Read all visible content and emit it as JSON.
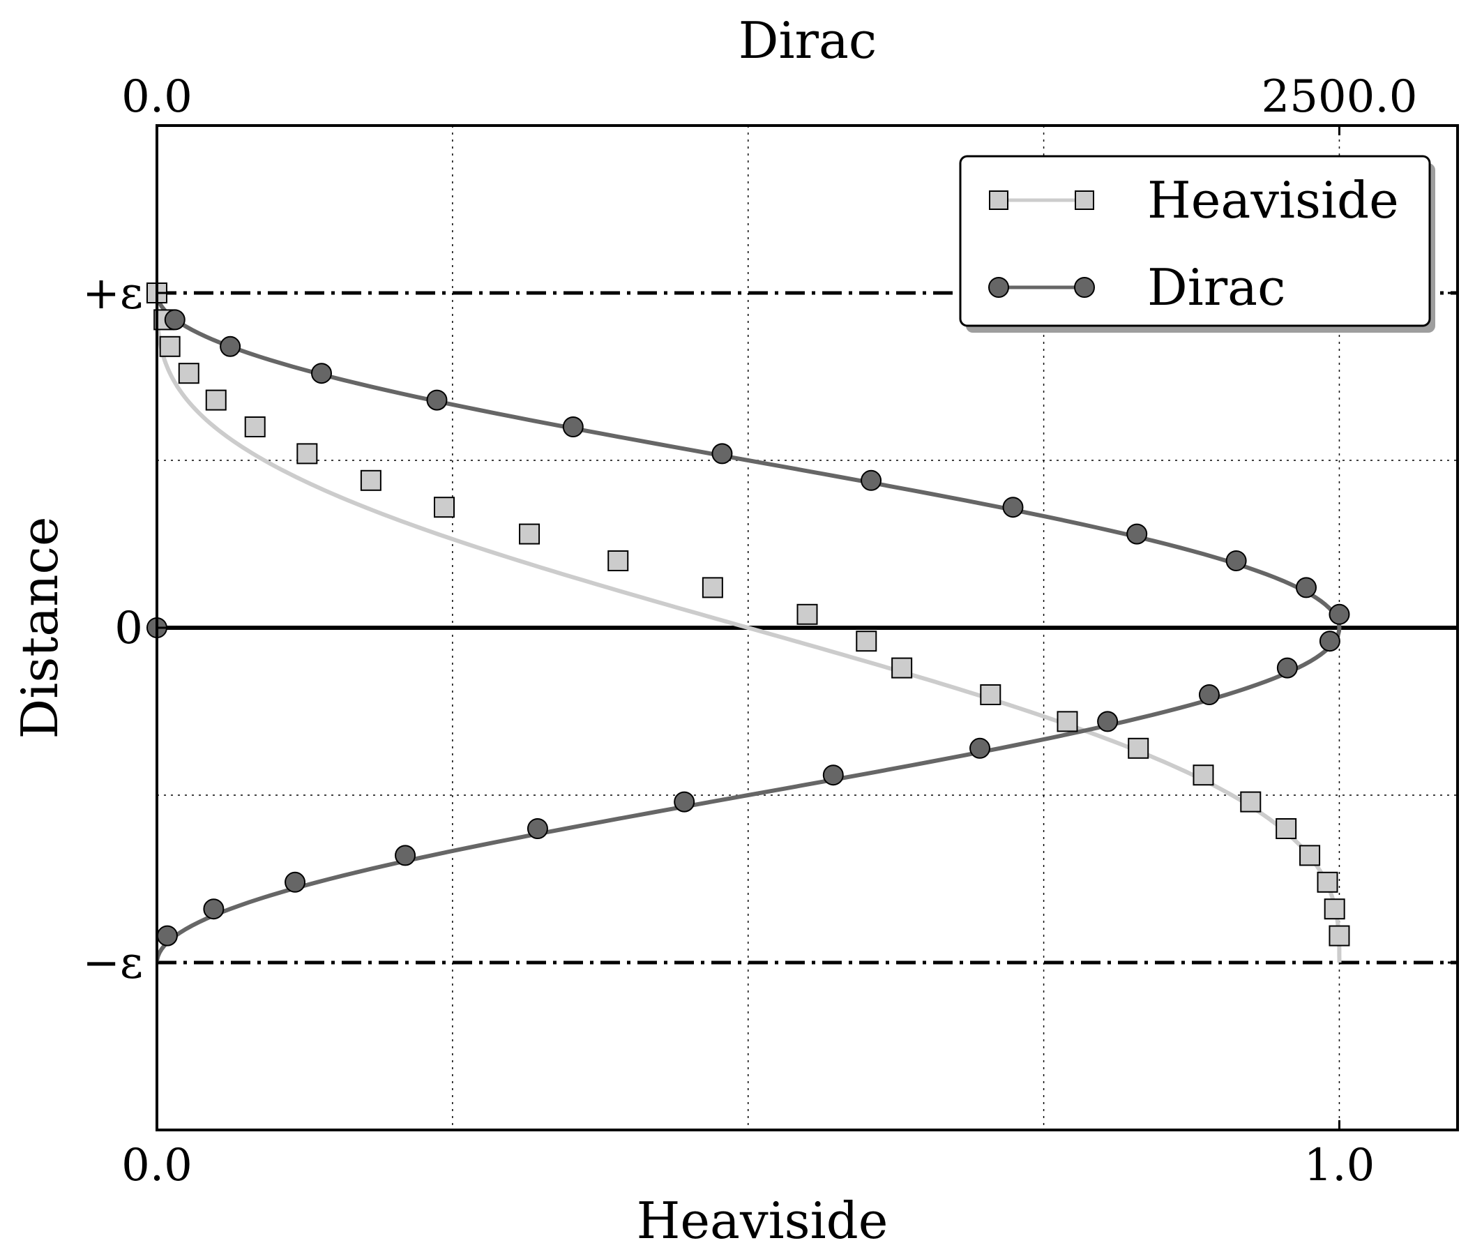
{
  "chart_data": {
    "type": "line",
    "title": "",
    "xlabel": "Heaviside",
    "x2label": "Dirac",
    "ylabel": "Distance",
    "xlim": [
      0,
      1.1
    ],
    "x2lim": [
      0,
      2750
    ],
    "ylim": [
      -1.5,
      1.5
    ],
    "grid": true,
    "legend_position": "top-right",
    "bottom_ticks": [
      {
        "value": 0,
        "label": "0.0"
      },
      {
        "value": 1.0,
        "label": "1.0"
      }
    ],
    "top_ticks": [
      {
        "value": 0,
        "label": "0.0"
      },
      {
        "value": 2500,
        "label": "2500.0"
      }
    ],
    "y_ticks": [
      {
        "value": 1,
        "label": "+ε"
      },
      {
        "value": 0,
        "label": "0"
      },
      {
        "value": -1,
        "label": "−ε"
      }
    ],
    "grid_x": [
      0.25,
      0.5,
      0.75,
      1.0
    ],
    "grid_y": [
      0.5,
      -0.5
    ],
    "reference_lines": [
      {
        "y": 1,
        "style": "dash-dot"
      },
      {
        "y": 0,
        "style": "solid"
      },
      {
        "y": -1,
        "style": "dash-dot"
      }
    ],
    "epsilon": 1.0,
    "series": [
      {
        "name": "Heaviside",
        "axis": "bottom",
        "color": "#cccccc",
        "marker": "square",
        "y": [
          1.0,
          0.92,
          0.84,
          0.76,
          0.68,
          0.6,
          0.52,
          0.44,
          0.36,
          0.28,
          0.2,
          0.12,
          0.04,
          -0.04,
          -0.12,
          -0.2,
          -0.28,
          -0.36,
          -0.44,
          -0.52,
          -0.6,
          -0.68,
          -0.76,
          -0.84,
          -0.92
        ],
        "x": [
          0.0,
          0.006,
          0.011,
          0.027,
          0.05,
          0.083,
          0.127,
          0.181,
          0.243,
          0.315,
          0.39,
          0.47,
          0.55,
          0.6,
          0.63,
          0.705,
          0.77,
          0.83,
          0.885,
          0.925,
          0.955,
          0.975,
          0.99,
          0.996,
          1.0
        ]
      },
      {
        "name": "Dirac",
        "axis": "top",
        "color": "#666666",
        "marker": "circle",
        "y": [
          0.0,
          0.92,
          0.84,
          0.76,
          0.68,
          0.6,
          0.52,
          0.44,
          0.36,
          0.28,
          0.2,
          0.12,
          0.04,
          -0.04,
          -0.12,
          -0.2,
          -0.28,
          -0.36,
          -0.44,
          -0.52,
          -0.6,
          -0.68,
          -0.76,
          -0.84,
          -0.92
        ],
        "x": [
          0,
          38,
          155,
          348,
          592,
          880,
          1195,
          1510,
          1810,
          2072,
          2282,
          2430,
          2500,
          2480,
          2390,
          2225,
          2010,
          1740,
          1430,
          1115,
          805,
          525,
          292,
          120,
          22
        ]
      }
    ]
  }
}
